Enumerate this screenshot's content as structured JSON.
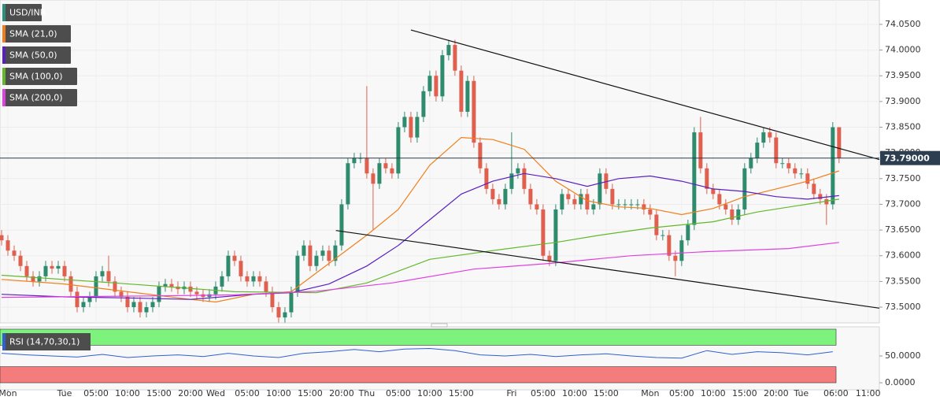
{
  "chart_data": {
    "type": "candlestick",
    "title": "USD/INR",
    "title_color": "#2f8f7a",
    "candles": {
      "up_color": "#2e8b6e",
      "down_color": "#e0604f",
      "open": [
        73.64,
        73.63,
        73.61,
        73.6,
        73.58,
        73.56,
        73.55,
        73.56,
        73.58,
        73.575,
        73.58,
        73.56,
        73.53,
        73.5,
        73.51,
        73.52,
        73.56,
        73.57,
        73.55,
        73.53,
        73.52,
        73.5,
        73.51,
        73.49,
        73.5,
        73.51,
        73.54,
        73.545,
        73.54,
        73.535,
        73.54,
        73.53,
        73.525,
        73.52,
        73.525,
        73.54,
        73.56,
        73.6,
        73.59,
        73.56,
        73.55,
        73.56,
        73.55,
        73.53,
        73.5,
        73.48,
        73.49,
        73.53,
        73.6,
        73.62,
        73.58,
        73.6,
        73.61,
        73.59,
        73.62,
        73.7,
        73.78,
        73.79,
        73.79,
        73.76,
        73.74,
        73.78,
        73.77,
        73.76,
        73.85,
        73.87,
        73.83,
        73.87,
        73.92,
        73.95,
        73.91,
        73.99,
        74.01,
        73.96,
        73.88,
        73.94,
        73.82,
        73.77,
        73.73,
        73.71,
        73.7,
        73.73,
        73.76,
        73.77,
        73.73,
        73.7,
        73.69,
        73.6,
        73.59,
        73.69,
        73.72,
        73.71,
        73.7,
        73.72,
        73.69,
        73.7,
        73.76,
        73.73,
        73.7,
        73.7,
        73.7,
        73.7,
        73.7,
        73.69,
        73.68,
        73.64,
        73.64,
        73.6,
        73.59,
        73.63,
        73.66,
        73.84,
        73.77,
        73.73,
        73.72,
        73.7,
        73.69,
        73.67,
        73.69,
        73.77,
        73.79,
        73.82,
        73.84,
        73.83,
        73.78,
        73.78,
        73.77,
        73.76,
        73.76,
        73.74,
        73.72,
        73.71,
        73.7,
        73.85
      ],
      "high": [
        73.65,
        73.64,
        73.62,
        73.61,
        73.59,
        73.57,
        73.57,
        73.59,
        73.59,
        73.59,
        73.59,
        73.57,
        73.54,
        73.52,
        73.53,
        73.57,
        73.58,
        73.6,
        73.56,
        73.54,
        73.53,
        73.52,
        73.52,
        73.51,
        73.52,
        73.55,
        73.555,
        73.555,
        73.55,
        73.55,
        73.55,
        73.54,
        73.535,
        73.535,
        73.55,
        73.57,
        73.61,
        73.61,
        73.6,
        73.57,
        73.57,
        73.57,
        73.56,
        73.54,
        73.51,
        73.5,
        73.54,
        73.61,
        73.63,
        73.63,
        73.61,
        73.62,
        73.62,
        73.63,
        73.71,
        73.79,
        73.8,
        73.8,
        73.93,
        73.77,
        73.79,
        73.79,
        73.78,
        73.86,
        73.88,
        73.88,
        73.88,
        73.93,
        73.96,
        73.96,
        74.0,
        74.02,
        74.02,
        73.97,
        73.95,
        73.95,
        73.83,
        73.78,
        73.74,
        73.72,
        73.74,
        73.84,
        73.78,
        73.78,
        73.74,
        73.71,
        73.7,
        73.61,
        73.7,
        73.73,
        73.73,
        73.72,
        73.73,
        73.73,
        73.71,
        73.77,
        73.77,
        73.74,
        73.71,
        73.71,
        73.71,
        73.71,
        73.71,
        73.7,
        73.69,
        73.65,
        73.65,
        73.61,
        73.64,
        73.67,
        73.85,
        73.87,
        73.78,
        73.74,
        73.73,
        73.71,
        73.7,
        73.7,
        73.78,
        73.8,
        73.83,
        73.85,
        73.85,
        73.84,
        73.79,
        73.79,
        73.78,
        73.77,
        73.77,
        73.75,
        73.73,
        73.72,
        73.86,
        73.85
      ],
      "low": [
        73.62,
        73.6,
        73.59,
        73.57,
        73.55,
        73.54,
        73.54,
        73.55,
        73.565,
        73.565,
        73.55,
        73.52,
        73.49,
        73.49,
        73.5,
        73.51,
        73.55,
        73.54,
        73.52,
        73.51,
        73.49,
        73.49,
        73.48,
        73.48,
        73.49,
        73.5,
        73.53,
        73.53,
        73.525,
        73.525,
        73.52,
        73.515,
        73.51,
        73.51,
        73.515,
        73.53,
        73.55,
        73.58,
        73.55,
        73.54,
        73.54,
        73.54,
        73.52,
        73.49,
        73.47,
        73.47,
        73.48,
        73.52,
        73.59,
        73.57,
        73.57,
        73.59,
        73.58,
        73.58,
        73.61,
        73.69,
        73.77,
        73.78,
        73.75,
        73.65,
        73.73,
        73.76,
        73.75,
        73.75,
        73.84,
        73.82,
        73.82,
        73.86,
        73.91,
        73.9,
        73.9,
        73.98,
        73.95,
        73.87,
        73.87,
        73.81,
        73.76,
        73.72,
        73.7,
        73.69,
        73.69,
        73.72,
        73.75,
        73.72,
        73.69,
        73.68,
        73.59,
        73.58,
        73.58,
        73.68,
        73.7,
        73.69,
        73.69,
        73.68,
        73.68,
        73.69,
        73.72,
        73.69,
        73.69,
        73.69,
        73.69,
        73.69,
        73.68,
        73.67,
        73.63,
        73.63,
        73.59,
        73.56,
        73.58,
        73.62,
        73.65,
        73.76,
        73.72,
        73.71,
        73.69,
        73.68,
        73.66,
        73.66,
        73.68,
        73.76,
        73.78,
        73.81,
        73.82,
        73.77,
        73.77,
        73.76,
        73.75,
        73.75,
        73.73,
        73.71,
        73.7,
        73.66,
        73.69,
        73.78
      ],
      "close": [
        73.63,
        73.61,
        73.6,
        73.58,
        73.56,
        73.55,
        73.56,
        73.58,
        73.575,
        73.58,
        73.56,
        73.53,
        73.5,
        73.51,
        73.52,
        73.56,
        73.57,
        73.55,
        73.53,
        73.52,
        73.5,
        73.51,
        73.49,
        73.5,
        73.51,
        73.54,
        73.545,
        73.54,
        73.535,
        73.54,
        73.53,
        73.525,
        73.52,
        73.525,
        73.54,
        73.56,
        73.6,
        73.59,
        73.56,
        73.55,
        73.56,
        73.55,
        73.53,
        73.5,
        73.48,
        73.49,
        73.53,
        73.6,
        73.62,
        73.58,
        73.6,
        73.61,
        73.59,
        73.62,
        73.7,
        73.78,
        73.79,
        73.79,
        73.76,
        73.74,
        73.78,
        73.77,
        73.76,
        73.85,
        73.87,
        73.83,
        73.87,
        73.92,
        73.95,
        73.91,
        73.99,
        74.01,
        73.96,
        73.88,
        73.94,
        73.82,
        73.77,
        73.73,
        73.71,
        73.7,
        73.73,
        73.76,
        73.77,
        73.73,
        73.7,
        73.69,
        73.6,
        73.59,
        73.69,
        73.72,
        73.71,
        73.7,
        73.72,
        73.69,
        73.7,
        73.76,
        73.73,
        73.7,
        73.7,
        73.7,
        73.7,
        73.7,
        73.69,
        73.68,
        73.64,
        73.64,
        73.6,
        73.59,
        73.63,
        73.66,
        73.84,
        73.77,
        73.73,
        73.72,
        73.7,
        73.69,
        73.67,
        73.69,
        73.77,
        73.79,
        73.82,
        73.84,
        73.83,
        73.78,
        73.78,
        73.77,
        73.76,
        73.76,
        73.74,
        73.72,
        73.71,
        73.7,
        73.85,
        73.79
      ]
    },
    "series": [
      {
        "name": "SMA (21,0)",
        "color": "#f07f1b",
        "x": [
          0,
          10,
          20,
          30,
          34,
          40,
          46,
          52,
          58,
          63,
          68,
          73,
          78,
          83,
          88,
          93,
          98,
          103,
          108,
          113,
          118,
          123,
          128,
          133
        ],
        "values": [
          73.554,
          73.545,
          73.53,
          73.515,
          73.51,
          73.525,
          73.53,
          73.585,
          73.64,
          73.69,
          73.776,
          73.83,
          73.826,
          73.807,
          73.745,
          73.707,
          73.695,
          73.692,
          73.68,
          73.692,
          73.715,
          73.73,
          73.745,
          73.765
        ]
      },
      {
        "name": "SMA (50,0)",
        "color": "#5a1fc0",
        "x": [
          0,
          10,
          20,
          30,
          40,
          46,
          52,
          58,
          63,
          68,
          73,
          78,
          83,
          88,
          93,
          98,
          103,
          108,
          113,
          118,
          123,
          128,
          133
        ],
        "values": [
          73.525,
          73.52,
          73.518,
          73.515,
          73.525,
          73.528,
          73.545,
          73.58,
          73.62,
          73.67,
          73.72,
          73.745,
          73.76,
          73.75,
          73.735,
          73.75,
          73.755,
          73.745,
          73.73,
          73.725,
          73.715,
          73.71,
          73.717
        ]
      },
      {
        "name": "SMA (100,0)",
        "color": "#62b82a",
        "x": [
          0,
          18,
          37,
          50,
          58,
          68,
          78,
          88,
          95,
          103,
          113,
          120,
          133
        ],
        "values": [
          73.562,
          73.547,
          73.53,
          73.528,
          73.547,
          73.593,
          73.61,
          73.626,
          73.64,
          73.654,
          73.666,
          73.685,
          73.71
        ]
      },
      {
        "name": "SMA (200,0)",
        "color": "#e040e0",
        "x": [
          0,
          25,
          37,
          50,
          62,
          75,
          87,
          100,
          112,
          125,
          133
        ],
        "values": [
          73.519,
          73.522,
          73.524,
          73.531,
          73.547,
          73.574,
          73.585,
          73.6,
          73.608,
          73.614,
          73.626
        ]
      }
    ],
    "trendlines": [
      {
        "color": "#111111",
        "x": [
          65,
          139.4
        ],
        "values": [
          74.039,
          73.787
        ]
      },
      {
        "color": "#111111",
        "x": [
          53.1,
          139.4
        ],
        "values": [
          73.649,
          73.498
        ]
      }
    ],
    "last_price": {
      "value": 73.79,
      "label": "73.79000"
    },
    "xlim": [
      -0.25,
      139.4
    ],
    "xticks": [
      {
        "value": 1,
        "label": "Mon"
      },
      {
        "value": 10,
        "label": "Tue"
      },
      {
        "value": 15,
        "label": "05:00"
      },
      {
        "value": 20,
        "label": "10:00"
      },
      {
        "value": 25,
        "label": "15:00"
      },
      {
        "value": 30,
        "label": "20:00"
      },
      {
        "value": 34,
        "label": "Wed"
      },
      {
        "value": 39,
        "label": "05:00"
      },
      {
        "value": 44,
        "label": "10:00"
      },
      {
        "value": 49,
        "label": "15:00"
      },
      {
        "value": 54,
        "label": "20:00"
      },
      {
        "value": 58,
        "label": "Thu"
      },
      {
        "value": 63,
        "label": "05:00"
      },
      {
        "value": 68,
        "label": "10:00"
      },
      {
        "value": 73,
        "label": "15:00"
      },
      {
        "value": 81,
        "label": "Fri"
      },
      {
        "value": 86,
        "label": "05:00"
      },
      {
        "value": 91,
        "label": "10:00"
      },
      {
        "value": 96,
        "label": "15:00"
      },
      {
        "value": 103,
        "label": "Mon"
      },
      {
        "value": 108,
        "label": "05:00"
      },
      {
        "value": 113,
        "label": "10:00"
      },
      {
        "value": 118,
        "label": "15:00"
      },
      {
        "value": 123,
        "label": "20:00"
      },
      {
        "value": 127,
        "label": "Tue"
      },
      {
        "value": 132.5,
        "label": "06:00"
      },
      {
        "value": 137.6,
        "label": "11:00"
      }
    ],
    "ylim": [
      73.4694,
      74.0974
    ],
    "yticks": [
      {
        "value": 73.5,
        "label": "73.5000"
      },
      {
        "value": 73.55,
        "label": "73.5500"
      },
      {
        "value": 73.6,
        "label": "73.6000"
      },
      {
        "value": 73.65,
        "label": "73.6500"
      },
      {
        "value": 73.7,
        "label": "73.7000"
      },
      {
        "value": 73.75,
        "label": "73.7500"
      },
      {
        "value": 73.8,
        "label": "73.8000"
      },
      {
        "value": 73.85,
        "label": "73.8500"
      },
      {
        "value": 73.9,
        "label": "73.9000"
      },
      {
        "value": 73.95,
        "label": "73.9500"
      },
      {
        "value": 74.0,
        "label": "74.0000"
      },
      {
        "value": 74.05,
        "label": "74.0500"
      }
    ],
    "grid": true,
    "rsi": {
      "name": "RSI (14,70,30,1)",
      "color": "#2f5fd0",
      "overbought": 70,
      "oversold": 30,
      "overbought_color": "#7df27d",
      "oversold_color": "#f47c7c",
      "ylim": [
        -13.2,
        104.4
      ],
      "yticks": [
        {
          "value": 0,
          "label": "0.0000"
        },
        {
          "value": 50,
          "label": "50.0000"
        }
      ],
      "x": [
        0,
        4,
        8,
        12,
        16,
        20,
        24,
        28,
        32,
        36,
        40,
        44,
        48,
        52,
        56,
        60,
        64,
        68,
        72,
        76,
        80,
        84,
        88,
        92,
        96,
        100,
        104,
        108,
        112,
        116,
        120,
        124,
        128,
        132
      ],
      "values": [
        55,
        52,
        50,
        48,
        53,
        47,
        50,
        52,
        49,
        55,
        50,
        47,
        55,
        58,
        62,
        58,
        63,
        64,
        60,
        52,
        50,
        53,
        49,
        52,
        54,
        50,
        47,
        46,
        60,
        53,
        58,
        56,
        52,
        58
      ]
    }
  }
}
